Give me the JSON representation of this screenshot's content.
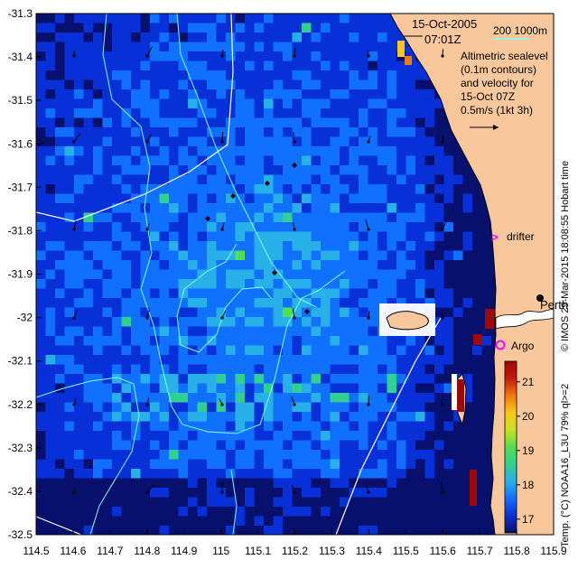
{
  "map": {
    "date_line1": "15-Oct-2005",
    "date_line2": "07:01Z",
    "isobath_label": "200  1000m",
    "altimetry_text": [
      "Altimetric sealevel",
      "(0.1m contours)",
      "and velocity for",
      "15-Oct 07Z",
      "0.5m/s (1kt 3h)"
    ],
    "drifter_label": "drifter",
    "argo_label": "Argo",
    "city_label": "Perth",
    "side_caption": "Temp. (°C) NOAA16_L3U 79% ql>=2",
    "credit": "© IMOS 29-Mar-2015 18:08:55 Hobart time",
    "colors": {
      "land": "#f8c89c",
      "deep_ocean": "#101a8c",
      "isobath_200": "#80ffff",
      "isobath_1000": "#ffffff",
      "drifter": "#ff00ff",
      "argo": "#ff00ff",
      "contour": "#ffffff"
    },
    "x_ticks": [
      "114.5",
      "114.6",
      "114.7",
      "114.8",
      "114.9",
      "115",
      "115.1",
      "115.2",
      "115.3",
      "115.4",
      "115.5",
      "115.6",
      "115.7",
      "115.8",
      "115.9"
    ],
    "y_ticks": [
      "-31.3",
      "-31.4",
      "-31.5",
      "-31.6",
      "-31.7",
      "-31.8",
      "-31.9",
      "-32",
      "-32.1",
      "-32.2",
      "-32.3",
      "-32.4",
      "-32.5"
    ],
    "colorbar": {
      "ticks": [
        "21",
        "20",
        "19",
        "18",
        "17"
      ],
      "min": 16.6,
      "max": 21.6,
      "stops": [
        "#08106e",
        "#0830d8",
        "#1070ff",
        "#28b0e8",
        "#30d090",
        "#50e050",
        "#c8e020",
        "#f8c818",
        "#f07810",
        "#c81810",
        "#a00808"
      ]
    },
    "extent": {
      "lon": [
        114.5,
        115.9
      ],
      "lat": [
        -32.5,
        -31.3
      ]
    }
  }
}
